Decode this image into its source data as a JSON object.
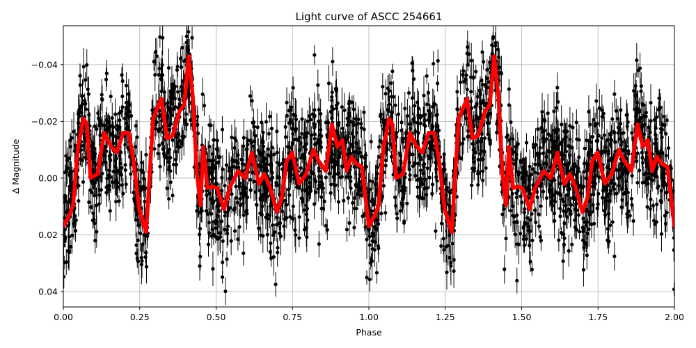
{
  "chart_data": {
    "type": "scatter",
    "title": "Light curve of ASCC 254661",
    "xlabel": "Phase",
    "ylabel": "Δ Magnitude",
    "xlim": [
      0,
      2
    ],
    "ylim": [
      0.0454,
      -0.0537
    ],
    "y_inverted": true,
    "grid": true,
    "xticks": [
      0,
      0.25,
      0.5,
      0.75,
      1.0,
      1.25,
      1.5,
      1.75,
      2.0
    ],
    "xtick_labels": [
      "0.00",
      "0.25",
      "0.50",
      "0.75",
      "1.00",
      "1.25",
      "1.50",
      "1.75",
      "2.00"
    ],
    "yticks": [
      -0.04,
      -0.02,
      0.0,
      0.02,
      0.04
    ],
    "ytick_labels": [
      "−0.04",
      "−0.02",
      "0.00",
      "0.02",
      "0.04"
    ],
    "series": [
      {
        "kind": "errorbar-scatter",
        "color": "#000000",
        "description_of_marks": "dense black points with vertical error bars scattered around the red curve"
      },
      {
        "kind": "line",
        "color": "#ff0000",
        "x": [
          0,
          0.02,
          0.032,
          0.048,
          0.066,
          0.077,
          0.089,
          0.112,
          0.134,
          0.157,
          0.175,
          0.196,
          0.214,
          0.23,
          0.248,
          0.271,
          0.294,
          0.321,
          0.339,
          0.358,
          0.38,
          0.396,
          0.41,
          0.424,
          0.437,
          0.449,
          0.458,
          0.472,
          0.487,
          0.503,
          0.526,
          0.544,
          0.572,
          0.595,
          0.617,
          0.64,
          0.658,
          0.677,
          0.699,
          0.715,
          0.731,
          0.749,
          0.772,
          0.795,
          0.818,
          0.836,
          0.859,
          0.879,
          0.897,
          0.913,
          0.927,
          0.943,
          0.959,
          0.977,
          1.0,
          1.02,
          1.032,
          1.048,
          1.066,
          1.077,
          1.089,
          1.112,
          1.134,
          1.157,
          1.175,
          1.196,
          1.214,
          1.23,
          1.248,
          1.271,
          1.294,
          1.321,
          1.339,
          1.358,
          1.38,
          1.396,
          1.41,
          1.424,
          1.437,
          1.449,
          1.458,
          1.472,
          1.487,
          1.503,
          1.526,
          1.544,
          1.572,
          1.595,
          1.617,
          1.64,
          1.658,
          1.677,
          1.699,
          1.715,
          1.731,
          1.749,
          1.772,
          1.795,
          1.818,
          1.836,
          1.859,
          1.879,
          1.897,
          1.913,
          1.927,
          1.943,
          1.959,
          1.977,
          2.0
        ],
        "y": [
          0.017,
          0.013,
          0.0095,
          -0.011,
          -0.021,
          -0.019,
          0.0,
          -0.0015,
          -0.016,
          -0.011,
          -0.009,
          -0.016,
          -0.016,
          -0.006,
          0.011,
          0.019,
          -0.021,
          -0.028,
          -0.014,
          -0.015,
          -0.0235,
          -0.026,
          -0.043,
          -0.0285,
          -0.0015,
          0.0095,
          -0.011,
          0.0035,
          0.003,
          0.0035,
          0.011,
          0.0035,
          -0.0025,
          0.0,
          -0.009,
          0.002,
          -0.0015,
          0.0035,
          0.012,
          0.007,
          -0.006,
          -0.009,
          0.002,
          -0.0015,
          -0.01,
          -0.006,
          -0.0025,
          -0.019,
          -0.011,
          -0.0135,
          -0.0025,
          -0.0075,
          -0.005,
          -0.004,
          0.017,
          0.013,
          0.0095,
          -0.011,
          -0.021,
          -0.019,
          0.0,
          -0.0015,
          -0.016,
          -0.011,
          -0.009,
          -0.016,
          -0.016,
          -0.006,
          0.011,
          0.019,
          -0.021,
          -0.028,
          -0.014,
          -0.015,
          -0.0235,
          -0.026,
          -0.043,
          -0.0285,
          -0.0015,
          0.0095,
          -0.011,
          0.0035,
          0.003,
          0.0035,
          0.011,
          0.0035,
          -0.0025,
          0.0,
          -0.009,
          0.002,
          -0.0015,
          0.0035,
          0.012,
          0.007,
          -0.006,
          -0.009,
          0.002,
          -0.0015,
          -0.01,
          -0.006,
          -0.0025,
          -0.019,
          -0.011,
          -0.0135,
          -0.0025,
          -0.0075,
          -0.005,
          -0.004,
          0.017
        ]
      }
    ]
  }
}
